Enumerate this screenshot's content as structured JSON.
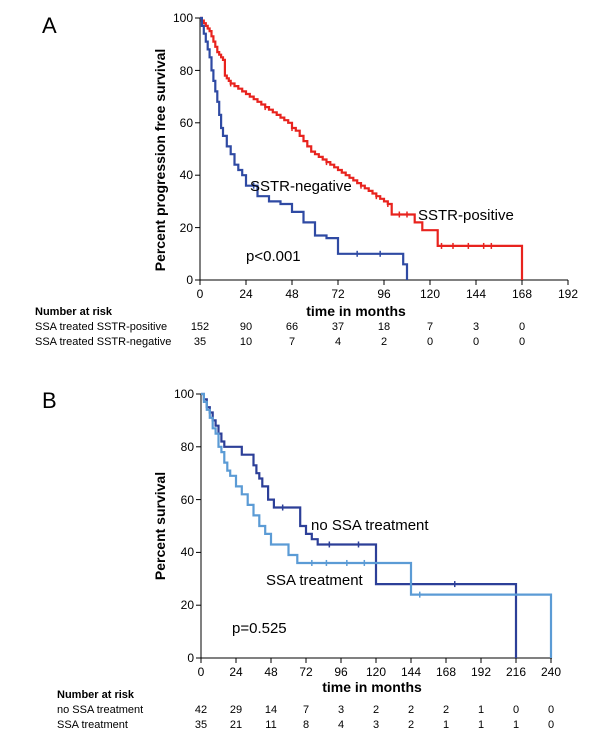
{
  "chart_data": [
    {
      "type": "line",
      "panel_label": "A",
      "xlabel": "time in months",
      "ylabel": "Percent progression free survival",
      "xlim": [
        0,
        192
      ],
      "ylim": [
        0,
        100
      ],
      "xticks": [
        "0",
        "24",
        "48",
        "72",
        "96",
        "120",
        "144",
        "168",
        "192"
      ],
      "yticks": [
        "0",
        "20",
        "40",
        "60",
        "80",
        "100"
      ],
      "annotations": {
        "p_value": "p<0.001",
        "label_positive": "SSTR-positive",
        "label_negative": "SSTR-negative"
      },
      "series": [
        {
          "name": "SSTR-positive",
          "color": "#e8231e",
          "x": [
            0,
            1,
            2,
            3,
            4,
            5,
            6,
            7,
            8,
            9,
            10,
            11,
            12,
            13,
            14,
            15,
            16,
            18,
            20,
            22,
            24,
            26,
            28,
            30,
            32,
            34,
            36,
            38,
            40,
            42,
            44,
            46,
            48,
            50,
            52,
            54,
            56,
            58,
            60,
            62,
            64,
            66,
            68,
            70,
            72,
            74,
            76,
            78,
            80,
            82,
            84,
            86,
            88,
            90,
            92,
            94,
            96,
            98,
            100,
            104,
            106,
            108,
            112,
            116,
            120,
            124,
            128,
            168
          ],
          "y": [
            100,
            99,
            98,
            97,
            96,
            95,
            93,
            91,
            89,
            87,
            86,
            85,
            84,
            78,
            77,
            76,
            75,
            74,
            73,
            72,
            71,
            70,
            69,
            68,
            67,
            66,
            65,
            64,
            63,
            62,
            61,
            60,
            58,
            57,
            55,
            53,
            51,
            49,
            48,
            47,
            46,
            45,
            44,
            43,
            42,
            41,
            40,
            39,
            38,
            37,
            36,
            35,
            34,
            33,
            32,
            31,
            30,
            29,
            25,
            25,
            25,
            25,
            22,
            19,
            19,
            13,
            13,
            0
          ],
          "censored_x": [
            16,
            34,
            48,
            66,
            84,
            92,
            98,
            104,
            108,
            126,
            132,
            140,
            148,
            152
          ]
        },
        {
          "name": "SSTR-negative",
          "color": "#2f4aa3",
          "x": [
            0,
            1,
            2,
            3,
            4,
            5,
            6,
            7,
            8,
            9,
            10,
            11,
            12,
            14,
            16,
            18,
            20,
            22,
            24,
            30,
            36,
            42,
            48,
            54,
            60,
            66,
            72,
            84,
            96,
            106,
            108
          ],
          "y": [
            100,
            97,
            94,
            91,
            88,
            85,
            80,
            76,
            72,
            68,
            63,
            58,
            55,
            51,
            48,
            44,
            42,
            40,
            36,
            32,
            30,
            29,
            26,
            22,
            17,
            16,
            10,
            10,
            10,
            6,
            0
          ],
          "censored_x": [
            28,
            82,
            94
          ]
        }
      ],
      "risk_table": {
        "title": "Number at risk",
        "rows": [
          {
            "label": "SSA treated SSTR-positive",
            "values": [
              "152",
              "90",
              "66",
              "37",
              "18",
              "7",
              "3",
              "0"
            ]
          },
          {
            "label": "SSA treated SSTR-negative",
            "values": [
              "35",
              "10",
              "7",
              "4",
              "2",
              "0",
              "0",
              "0"
            ]
          }
        ]
      }
    },
    {
      "type": "line",
      "panel_label": "B",
      "xlabel": "time in months",
      "ylabel": "Percent survival",
      "xlim": [
        0,
        240
      ],
      "ylim": [
        0,
        100
      ],
      "xticks": [
        "0",
        "24",
        "48",
        "72",
        "96",
        "120",
        "144",
        "168",
        "192",
        "216",
        "240"
      ],
      "yticks": [
        "0",
        "20",
        "40",
        "60",
        "80",
        "100"
      ],
      "annotations": {
        "p_value": "p=0.525",
        "label_no_ssa": "no SSA treatment",
        "label_ssa": "SSA treatment"
      },
      "series": [
        {
          "name": "no SSA treatment",
          "color": "#2c3f98",
          "x": [
            0,
            2,
            4,
            6,
            8,
            10,
            12,
            14,
            16,
            18,
            20,
            24,
            28,
            32,
            36,
            38,
            40,
            42,
            46,
            50,
            54,
            58,
            62,
            64,
            68,
            72,
            76,
            80,
            84,
            88,
            96,
            108,
            118,
            120,
            130,
            144,
            168,
            192,
            214,
            216
          ],
          "y": [
            100,
            98,
            95,
            93,
            90,
            88,
            85,
            82,
            80,
            80,
            80,
            80,
            77,
            77,
            73,
            70,
            68,
            65,
            60,
            57,
            57,
            57,
            57,
            57,
            50,
            47,
            45,
            43,
            43,
            43,
            43,
            43,
            43,
            28,
            28,
            28,
            28,
            28,
            28,
            0
          ],
          "censored_x": [
            56,
            88,
            108,
            174
          ]
        },
        {
          "name": "SSA treatment",
          "color": "#5b9bd5",
          "x": [
            0,
            2,
            4,
            6,
            8,
            10,
            12,
            14,
            16,
            18,
            20,
            24,
            28,
            32,
            36,
            40,
            44,
            48,
            54,
            60,
            66,
            70,
            76,
            96,
            120,
            142,
            144,
            168,
            192,
            216,
            238,
            240
          ],
          "y": [
            100,
            97,
            94,
            91,
            87,
            85,
            80,
            78,
            74,
            71,
            69,
            65,
            62,
            58,
            54,
            50,
            47,
            43,
            43,
            39,
            36,
            36,
            36,
            36,
            36,
            36,
            24,
            24,
            24,
            24,
            24,
            0
          ],
          "censored_x": [
            76,
            86,
            100,
            112,
            150
          ]
        }
      ],
      "risk_table": {
        "title": "Number at risk",
        "rows": [
          {
            "label": "no SSA treatment",
            "values": [
              "42",
              "29",
              "14",
              "7",
              "3",
              "2",
              "2",
              "2",
              "1",
              "0",
              "0"
            ]
          },
          {
            "label": "SSA treatment",
            "values": [
              "35",
              "21",
              "11",
              "8",
              "4",
              "3",
              "2",
              "1",
              "1",
              "1",
              "0"
            ]
          }
        ]
      }
    }
  ]
}
